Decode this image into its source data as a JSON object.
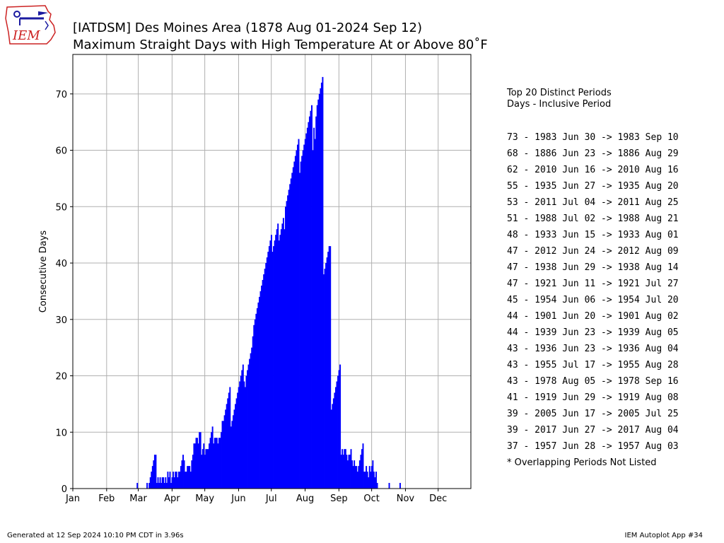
{
  "header": {
    "logo_text": "IEM",
    "title_line1": "[IATDSM] Des Moines Area (1878 Aug 01-2024 Sep 12)",
    "title_line2": "Maximum Straight Days with High Temperature At or Above 80˚F"
  },
  "colors": {
    "bar": "#0000ff",
    "grid": "#b0b0b0",
    "logo_red": "#cc2222",
    "logo_blue": "#1a1aa0"
  },
  "legend": {
    "heading1": "Top 20 Distinct Periods",
    "heading2": "Days - Inclusive Period",
    "periods": [
      "73 - 1983 Jun 30 -> 1983 Sep 10",
      "68 - 1886 Jun 23 -> 1886 Aug 29",
      "62 - 2010 Jun 16 -> 2010 Aug 16",
      "55 - 1935 Jun 27 -> 1935 Aug 20",
      "53 - 2011 Jul 04 -> 2011 Aug 25",
      "51 - 1988 Jul 02 -> 1988 Aug 21",
      "48 - 1933 Jun 15 -> 1933 Aug 01",
      "47 - 2012 Jun 24 -> 2012 Aug 09",
      "47 - 1938 Jun 29 -> 1938 Aug 14",
      "47 - 1921 Jun 11 -> 1921 Jul 27",
      "45 - 1954 Jun 06 -> 1954 Jul 20",
      "44 - 1901 Jun 20 -> 1901 Aug 02",
      "44 - 1939 Jun 23 -> 1939 Aug 05",
      "43 - 1936 Jun 23 -> 1936 Aug 04",
      "43 - 1955 Jul 17 -> 1955 Aug 28",
      "43 - 1978 Aug 05 -> 1978 Sep 16",
      "41 - 1919 Jun 29 -> 1919 Aug 08",
      "39 - 2005 Jun 17 -> 2005 Jul 25",
      "39 - 2017 Jun 27 -> 2017 Aug 04",
      "37 - 1957 Jun 28 -> 1957 Aug 03"
    ],
    "note": "* Overlapping Periods Not Listed"
  },
  "footer": {
    "generated": "Generated at 12 Sep 2024 10:10 PM CDT in 3.96s",
    "app": "IEM Autoplot App #34"
  },
  "chart_data": {
    "type": "bar",
    "title": "Maximum Straight Days with High Temperature At or Above 80˚F",
    "xlabel": "",
    "ylabel": "Consecutive Days",
    "xlim": [
      1,
      366
    ],
    "ylim": [
      0,
      77
    ],
    "x_ticks": [
      {
        "label": "Jan",
        "day": 1
      },
      {
        "label": "Feb",
        "day": 32
      },
      {
        "label": "Mar",
        "day": 61
      },
      {
        "label": "Apr",
        "day": 92
      },
      {
        "label": "May",
        "day": 122
      },
      {
        "label": "Jun",
        "day": 153
      },
      {
        "label": "Jul",
        "day": 183
      },
      {
        "label": "Aug",
        "day": 214
      },
      {
        "label": "Sep",
        "day": 245
      },
      {
        "label": "Oct",
        "day": 275
      },
      {
        "label": "Nov",
        "day": 306
      },
      {
        "label": "Dec",
        "day": 336
      }
    ],
    "y_ticks": [
      0,
      10,
      20,
      30,
      40,
      50,
      60,
      70
    ],
    "grid": true,
    "start_day": 60,
    "values": [
      1,
      0,
      0,
      0,
      0,
      0,
      0,
      0,
      0,
      1,
      0,
      1,
      2,
      3,
      4,
      5,
      6,
      6,
      1,
      2,
      1,
      2,
      1,
      2,
      2,
      1,
      2,
      1,
      3,
      2,
      3,
      1,
      2,
      3,
      2,
      3,
      3,
      2,
      3,
      3,
      4,
      5,
      6,
      5,
      3,
      3,
      4,
      4,
      4,
      3,
      5,
      6,
      8,
      8,
      9,
      9,
      8,
      10,
      10,
      6,
      7,
      8,
      6,
      7,
      7,
      7,
      8,
      9,
      10,
      11,
      8,
      9,
      9,
      9,
      8,
      9,
      9,
      10,
      12,
      12,
      13,
      14,
      15,
      16,
      17,
      18,
      11,
      12,
      13,
      14,
      15,
      16,
      17,
      18,
      19,
      20,
      21,
      22,
      19,
      18,
      20,
      21,
      22,
      23,
      24,
      25,
      27,
      29,
      30,
      31,
      32,
      33,
      34,
      35,
      36,
      37,
      38,
      39,
      40,
      41,
      42,
      43,
      44,
      45,
      42,
      43,
      44,
      45,
      46,
      47,
      44,
      45,
      46,
      47,
      48,
      46,
      50,
      51,
      52,
      53,
      54,
      55,
      56,
      57,
      58,
      59,
      60,
      61,
      62,
      56,
      58,
      59,
      60,
      61,
      62,
      63,
      64,
      65,
      66,
      67,
      68,
      60,
      64,
      62,
      66,
      68,
      69,
      70,
      71,
      72,
      73,
      38,
      39,
      40,
      41,
      42,
      43,
      43,
      14,
      15,
      16,
      17,
      18,
      19,
      20,
      21,
      22,
      6,
      7,
      6,
      7,
      7,
      6,
      5,
      6,
      6,
      7,
      5,
      4,
      5,
      4,
      4,
      3,
      4,
      5,
      6,
      7,
      8,
      3,
      3,
      4,
      3,
      2,
      4,
      3,
      4,
      5,
      3,
      2,
      3,
      1,
      0,
      0,
      0,
      0,
      0,
      0,
      0,
      0,
      0,
      0,
      1,
      0,
      0,
      0,
      0,
      0,
      0,
      0,
      0,
      0,
      1
    ]
  }
}
